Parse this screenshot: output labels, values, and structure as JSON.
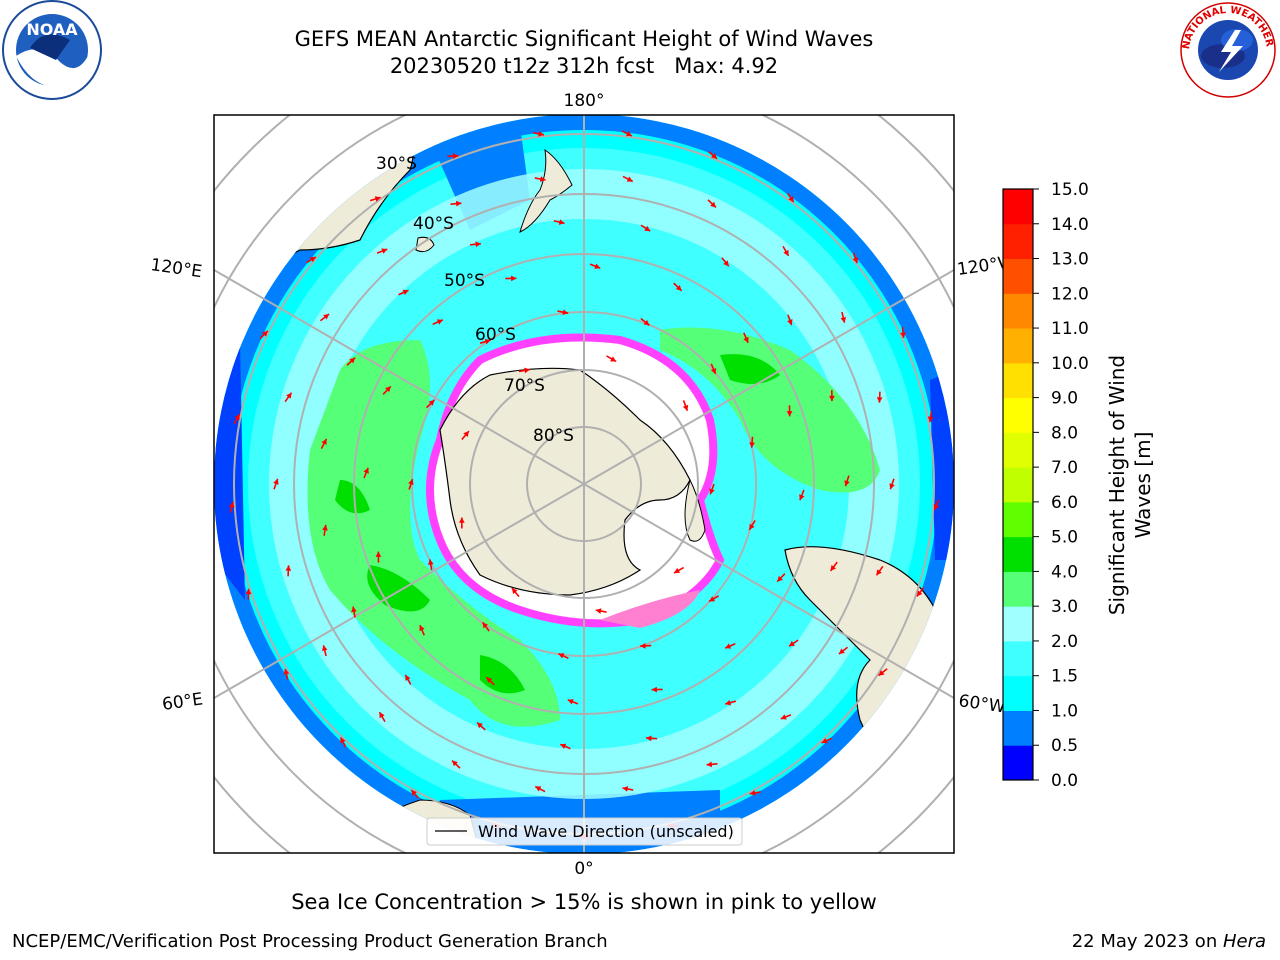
{
  "title": {
    "line1": "GEFS MEAN Antarctic Significant Height of Wind Waves",
    "line2": "20230520 t12z 312h fcst   Max: 4.92"
  },
  "logos": {
    "left": "noaa-logo",
    "left_text": "NOAA",
    "right": "nws-logo",
    "right_text": "NATIONAL WEATHER SERVICE"
  },
  "map": {
    "longitude_labels": {
      "top": "180°",
      "bottom": "0°",
      "upper_left": "120°E",
      "lower_left": "60°E",
      "upper_right": "120°W",
      "lower_right": "60°W"
    },
    "latitude_labels": [
      "30°S",
      "40°S",
      "50°S",
      "60°S",
      "70°S",
      "80°S"
    ],
    "legend_label": "Wind Wave Direction (unscaled)"
  },
  "colorbar": {
    "label_line1": "Significant Height of Wind",
    "label_line2": "Waves [m]",
    "ticks": [
      "0.0",
      "0.5",
      "1.0",
      "1.5",
      "2.0",
      "3.0",
      "4.0",
      "5.0",
      "6.0",
      "7.0",
      "8.0",
      "9.0",
      "10.0",
      "11.0",
      "12.0",
      "13.0",
      "14.0",
      "15.0"
    ],
    "colors": [
      "#0000ff",
      "#0080ff",
      "#00ffff",
      "#40ffff",
      "#a0ffff",
      "#55ff77",
      "#00e000",
      "#60ff00",
      "#c0ff00",
      "#e0ff00",
      "#ffff00",
      "#ffe000",
      "#ffb000",
      "#ff8800",
      "#ff5000",
      "#ff2000",
      "#ff0000"
    ]
  },
  "colors": {
    "land": "#eeecd8",
    "ice_edge": "#ff40ff",
    "arrow": "#ff0000",
    "grid": "#b0b0b0"
  },
  "subtitle": "Sea Ice Concentration > 15% is shown in pink to yellow",
  "footer": {
    "left": "NCEP/EMC/Verification Post Processing Product Generation Branch",
    "right_prefix": "22 May 2023 on ",
    "right_system": "Hera"
  }
}
